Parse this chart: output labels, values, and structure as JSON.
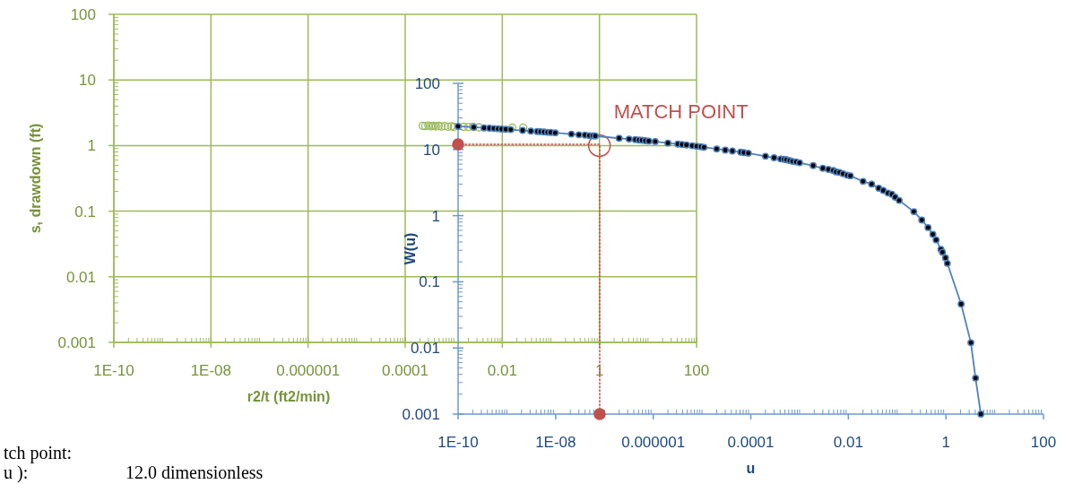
{
  "chart_data": [
    {
      "type": "scatter",
      "xlabel": "r2/t (ft2/min)",
      "ylabel": "s, drawdown (ft)",
      "log": "xy",
      "xlim": [
        1e-10,
        100
      ],
      "ylim": [
        0.001,
        100
      ],
      "xticks": [
        {
          "value": 1e-10,
          "label": "1E-10"
        },
        {
          "value": 1e-08,
          "label": "1E-08"
        },
        {
          "value": 1e-06,
          "label": "0.000001"
        },
        0.0001,
        0.01,
        1,
        100
      ],
      "yticks": [
        0.001,
        0.01,
        0.1,
        1,
        10,
        100
      ],
      "grid": true,
      "marker": "circle",
      "series": [
        {
          "color": "#9bbb59",
          "x": [
            0.00023,
            0.00026,
            0.0003,
            0.00034,
            0.00038,
            0.00043,
            0.00049,
            0.00056,
            0.00065,
            0.00076,
            0.00089,
            0.001,
            0.0013,
            0.0016,
            0.002,
            0.0025,
            0.0033,
            0.0045,
            0.0063,
            0.01,
            0.016,
            0.027
          ],
          "values": [
            2.0,
            1.98,
            2.02,
            1.97,
            2.0,
            1.96,
            1.99,
            1.95,
            1.98,
            1.94,
            1.97,
            1.93,
            null,
            1.93,
            1.92,
            1.94,
            1.9,
            null,
            null,
            null,
            1.87,
            1.88
          ]
        },
        {
          "type": "bubble",
          "color": "#c0504d",
          "x": [
            1
          ],
          "values": [
            1
          ],
          "sizes": [
            1
          ]
        }
      ],
      "annotations": [
        {
          "text": "MATCH POINT",
          "x": 1,
          "y": 1
        }
      ]
    },
    {
      "type": "line",
      "xlabel": "u",
      "ylabel": "W(u)",
      "log": "xy",
      "xlim": [
        1e-10,
        100
      ],
      "ylim": [
        0.001,
        100
      ],
      "xticks": [
        {
          "value": 1e-10,
          "label": "1E-10"
        },
        {
          "value": 1e-08,
          "label": "1E-08"
        },
        {
          "value": 1e-06,
          "label": "0.000001"
        },
        0.0001,
        0.01,
        1,
        100
      ],
      "yticks": [
        0.001,
        0.01,
        0.1,
        1,
        10,
        100
      ],
      "marker": "circle",
      "series": [
        {
          "color": "#4f81bd",
          "x": [
            1e-10,
            2.1e-10,
            3.4e-10,
            4.4e-10,
            5.4e-10,
            6.6e-10,
            7.8e-10,
            9.5e-10,
            1.2e-09,
            2.1e-09,
            3.1e-09,
            4.2e-09,
            4.9e-09,
            5.8e-09,
            6.8e-09,
            7.9e-09,
            9.8e-09,
            2.1e-08,
            3e-08,
            4e-08,
            4.9e-08,
            5.8e-08,
            6.5e-08,
            2e-07,
            3.2e-07,
            4.3e-07,
            5.1e-07,
            5.9e-07,
            6.9e-07,
            8.1e-07,
            1.1e-06,
            2e-06,
            3.2e-06,
            3.9e-06,
            4.8e-06,
            6.3e-06,
            7.8e-06,
            9.5e-06,
            1.1e-05,
            2e-05,
            3e-05,
            4.2e-05,
            6.2e-05,
            7.2e-05,
            8.9e-05,
            0.0002,
            0.0003,
            0.00041,
            0.00048,
            0.00054,
            0.00063,
            0.00072,
            0.00085,
            0.001,
            0.0019,
            0.003,
            0.0039,
            0.0049,
            0.0056,
            0.0066,
            0.0078,
            0.0095,
            0.011,
            0.02,
            0.03,
            0.042,
            0.052,
            0.065,
            0.078,
            0.091,
            0.11,
            0.22,
            0.32,
            0.43,
            0.54,
            0.63,
            0.79,
            0.85,
            0.98,
            1.07,
            2.05,
            3.25,
            4.05,
            5.2
          ],
          "values": [
            22.4,
            21.7,
            21.2,
            21.0,
            20.8,
            20.6,
            20.4,
            20.2,
            20.0,
            19.4,
            19.0,
            18.7,
            18.6,
            18.4,
            18.2,
            18.1,
            17.9,
            17.1,
            16.7,
            16.5,
            16.2,
            16.1,
            16.0,
            14.8,
            14.4,
            14.1,
            13.9,
            13.8,
            13.6,
            13.4,
            13.2,
            12.5,
            12.1,
            11.9,
            11.7,
            11.4,
            11.2,
            11.0,
            10.8,
            10.2,
            9.8,
            9.5,
            9.1,
            9.0,
            8.8,
            7.9,
            7.5,
            7.2,
            7.1,
            7.0,
            6.8,
            6.6,
            6.5,
            6.3,
            5.7,
            5.2,
            5.0,
            4.8,
            4.6,
            4.5,
            4.3,
            4.1,
            4.0,
            3.3,
            3.0,
            2.6,
            2.4,
            2.2,
            2.1,
            1.9,
            1.7,
            1.15,
            0.86,
            0.66,
            0.52,
            0.43,
            0.31,
            0.28,
            0.23,
            0.19,
            0.046,
            0.012,
            0.0035,
            0.001
          ]
        },
        {
          "type": "line",
          "color": "#c0504d",
          "line_style": "dotted",
          "marker": "none",
          "x": [
            1e-10,
            8e-08,
            8e-08
          ],
          "values": [
            12,
            12,
            0.001
          ]
        },
        {
          "type": "scatter",
          "color": "#c0504d",
          "x": [
            1e-10,
            8e-08
          ],
          "values": [
            12,
            0.001
          ]
        }
      ],
      "annotations": [
        "tch point:",
        "u ):",
        "12.0 dimensionless"
      ]
    }
  ]
}
